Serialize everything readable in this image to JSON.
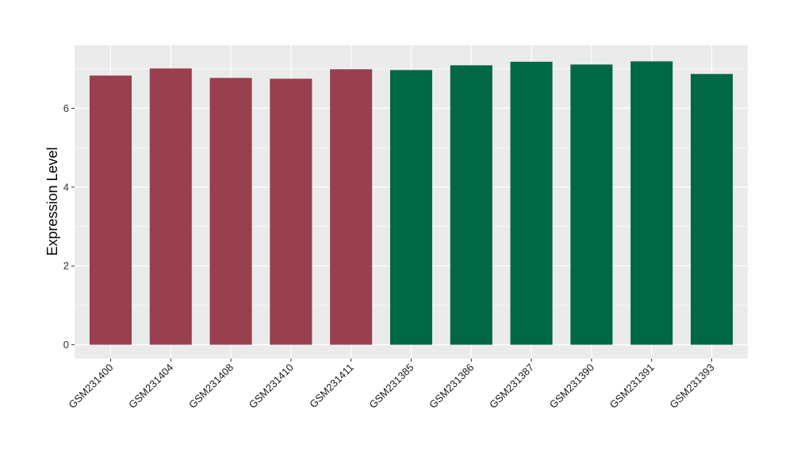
{
  "chart_data": {
    "type": "bar",
    "title": "",
    "xlabel": "",
    "ylabel": "Expression Level",
    "ylim": [
      -0.35,
      7.6
    ],
    "yticks": [
      0,
      2,
      4,
      6
    ],
    "grid": true,
    "legend": "none",
    "categories": [
      "GSM231400",
      "GSM231404",
      "GSM231408",
      "GSM231410",
      "GSM231411",
      "GSM231385",
      "GSM231386",
      "GSM231387",
      "GSM231390",
      "GSM231391",
      "GSM231393"
    ],
    "values": [
      6.83,
      7.01,
      6.77,
      6.75,
      6.99,
      6.97,
      7.09,
      7.18,
      7.11,
      7.19,
      6.87
    ],
    "groups": [
      "a",
      "a",
      "a",
      "a",
      "a",
      "b",
      "b",
      "b",
      "b",
      "b",
      "b"
    ],
    "colors": {
      "a": "#98404F",
      "b": "#016845"
    },
    "panel_background": "#EBEBEB",
    "gridline_color": "#FFFFFF"
  }
}
